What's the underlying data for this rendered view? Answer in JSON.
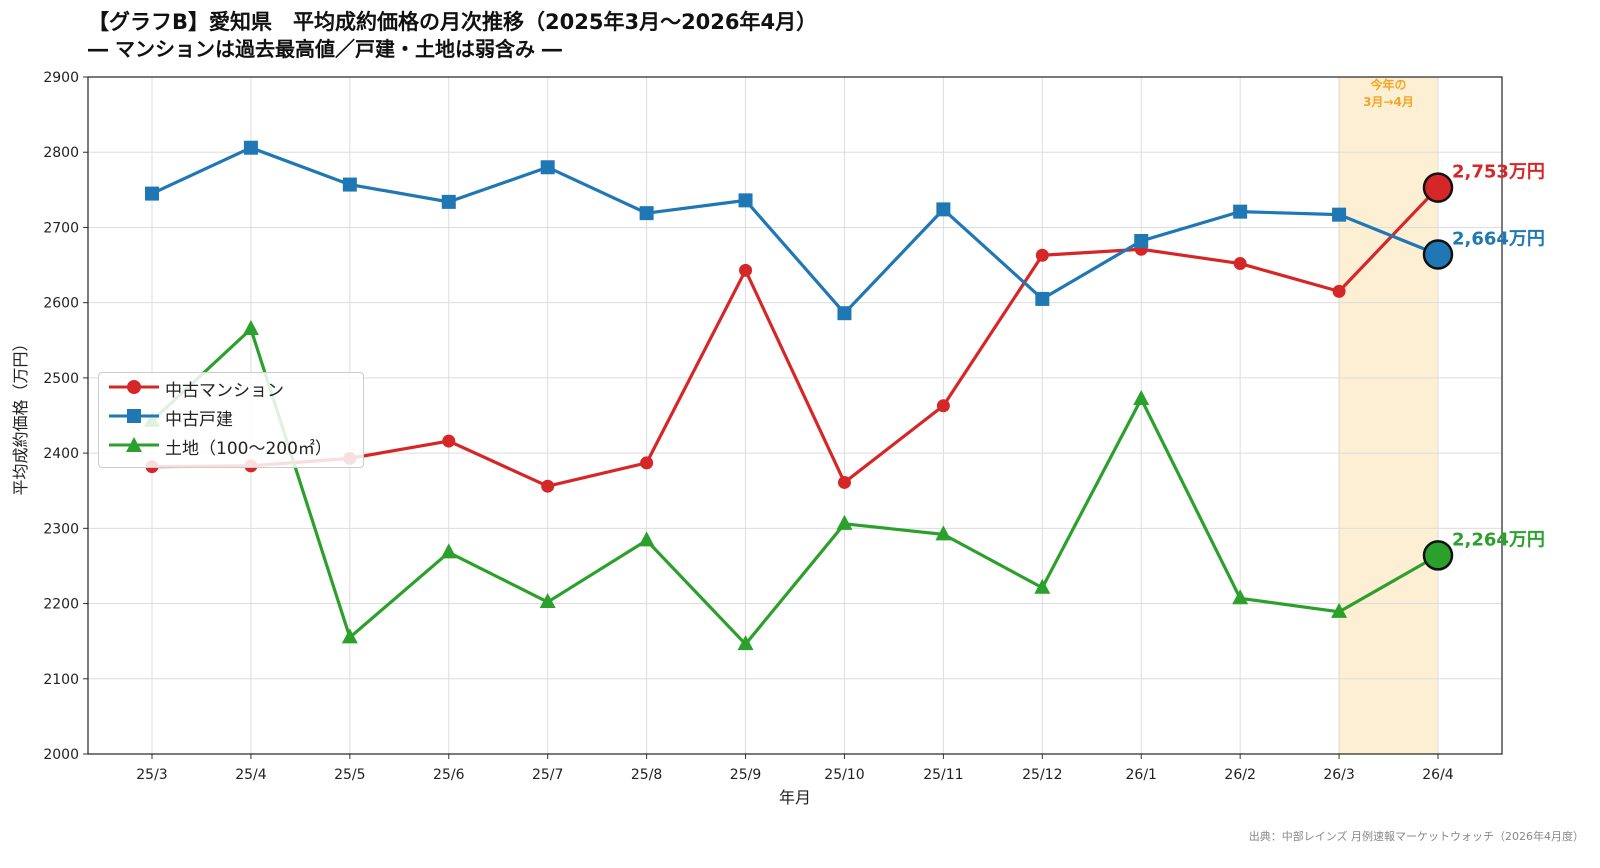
{
  "header": {
    "title": "【グラフB】愛知県　平均成約価格の月次推移（2025年3月～2026年4月）",
    "subtitle": "― マンションは過去最高値／戸建・土地は弱含み ―"
  },
  "source": "出典：中部レインズ 月例速報マーケットウォッチ（2026年4月度）",
  "chart_data": {
    "type": "line",
    "xlabel": "年月",
    "ylabel": "平均成約価格（万円）",
    "ylim": [
      2000,
      2900
    ],
    "yticks": [
      "2000",
      "2100",
      "2200",
      "2300",
      "2400",
      "2500",
      "2600",
      "2700",
      "2800",
      "2900"
    ],
    "categories": [
      "25/3",
      "25/4",
      "25/5",
      "25/6",
      "25/7",
      "25/8",
      "25/9",
      "25/10",
      "25/11",
      "25/12",
      "26/1",
      "26/2",
      "26/3",
      "26/4"
    ],
    "grid": true,
    "legend_position": "center-left",
    "highlight": {
      "from": "26/3",
      "to": "26/4",
      "label_line1": "今年の",
      "label_line2": "3月→4月",
      "color": "#f5a623"
    },
    "series": [
      {
        "name": "中古マンション",
        "marker": "circle",
        "color": "#d62728",
        "values": [
          2382,
          2383,
          2393,
          2416,
          2356,
          2387,
          2643,
          2361,
          2463,
          2663,
          2671,
          2652,
          2615,
          2753
        ],
        "end_label": "2,753万円"
      },
      {
        "name": "中古戸建",
        "marker": "square",
        "color": "#1f77b4",
        "values": [
          2745,
          2806,
          2757,
          2734,
          2780,
          2719,
          2736,
          2586,
          2724,
          2605,
          2682,
          2721,
          2717,
          2664
        ],
        "end_label": "2,664万円"
      },
      {
        "name": "土地（100～200㎡）",
        "marker": "triangle",
        "color": "#2ca02c",
        "values": [
          2443,
          2565,
          2155,
          2268,
          2202,
          2284,
          2146,
          2306,
          2292,
          2221,
          2472,
          2207,
          2189,
          2264
        ],
        "end_label": "2,264万円"
      }
    ]
  }
}
